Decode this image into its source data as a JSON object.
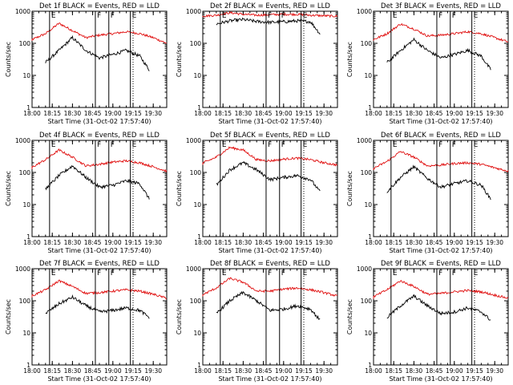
{
  "chart_data": [
    {
      "type": "line",
      "title": "Det 1f BLACK = Events, RED = LLD",
      "xlabel": "Start Time (31-Oct-02 17:57:40)",
      "ylabel": "Counts/sec",
      "yscale": "log",
      "ylim": [
        1,
        1000
      ],
      "yticks": [
        "1",
        "10",
        "100",
        "1000"
      ],
      "xlim": [
        "18:00",
        "19:40"
      ],
      "xticks": [
        "18:00",
        "18:15",
        "18:30",
        "18:45",
        "19:00",
        "19:15",
        "19:30"
      ],
      "markers": [
        {
          "label": "E",
          "time": "18:13",
          "style": "solid"
        },
        {
          "label": "F",
          "time": "18:47",
          "style": "solid"
        },
        {
          "label": "F",
          "time": "18:57",
          "style": "solid"
        },
        {
          "label": "E",
          "time": "19:13",
          "style": "solid"
        },
        {
          "label": "",
          "time": "19:15",
          "style": "dotted"
        }
      ],
      "series": [
        {
          "color": "#e01010",
          "time": [
            "17:58",
            "18:10",
            "18:20",
            "18:30",
            "18:40",
            "18:50",
            "19:00",
            "19:10",
            "19:20",
            "19:30",
            "19:40"
          ],
          "values": [
            120,
            200,
            420,
            250,
            150,
            180,
            200,
            230,
            200,
            150,
            100
          ]
        },
        {
          "color": "#000000",
          "start": "18:10",
          "end": "19:27",
          "time": [
            "18:10",
            "18:20",
            "18:30",
            "18:40",
            "18:50",
            "19:00",
            "19:10",
            "19:20",
            "19:27"
          ],
          "values": [
            25,
            60,
            150,
            60,
            35,
            45,
            60,
            40,
            15
          ]
        }
      ]
    },
    {
      "type": "line",
      "title": "Det 2f BLACK = Events, RED = LLD",
      "xlabel": "Start Time (31-Oct-02 17:57:40)",
      "ylabel": "Counts/sec",
      "yscale": "log",
      "ylim": [
        1,
        1000
      ],
      "yticks": [
        "1",
        "10",
        "100",
        "1000"
      ],
      "xlim": [
        "18:00",
        "19:40"
      ],
      "xticks": [
        "18:00",
        "18:15",
        "18:30",
        "18:45",
        "19:00",
        "19:15",
        "19:30"
      ],
      "markers": [
        {
          "label": "E",
          "time": "18:13",
          "style": "solid"
        },
        {
          "label": "F",
          "time": "18:47",
          "style": "solid"
        },
        {
          "label": "F",
          "time": "18:57",
          "style": "solid"
        },
        {
          "label": "E",
          "time": "19:13",
          "style": "solid"
        },
        {
          "label": "",
          "time": "19:15",
          "style": "dotted"
        }
      ],
      "series": [
        {
          "color": "#e01010",
          "time": [
            "17:58",
            "18:10",
            "18:20",
            "18:30",
            "18:40",
            "18:50",
            "19:00",
            "19:10",
            "19:20",
            "19:30",
            "19:40"
          ],
          "values": [
            700,
            750,
            900,
            800,
            750,
            780,
            800,
            800,
            750,
            720,
            700
          ]
        },
        {
          "color": "#000000",
          "start": "18:10",
          "end": "19:27",
          "time": [
            "18:10",
            "18:20",
            "18:30",
            "18:40",
            "18:50",
            "19:00",
            "19:10",
            "19:20",
            "19:27"
          ],
          "values": [
            400,
            500,
            550,
            480,
            450,
            470,
            500,
            470,
            200
          ]
        }
      ]
    },
    {
      "type": "line",
      "title": "Det 3f BLACK = Events, RED = LLD",
      "xlabel": "Start Time (31-Oct-02 17:57:40)",
      "ylabel": "Counts/sec",
      "yscale": "log",
      "ylim": [
        1,
        1000
      ],
      "yticks": [
        "1",
        "10",
        "100",
        "1000"
      ],
      "xlim": [
        "18:00",
        "19:40"
      ],
      "xticks": [
        "18:00",
        "18:15",
        "18:30",
        "18:45",
        "19:00",
        "19:15",
        "19:30"
      ],
      "markers": [
        {
          "label": "E",
          "time": "18:13",
          "style": "solid"
        },
        {
          "label": "F",
          "time": "18:47",
          "style": "solid"
        },
        {
          "label": "F",
          "time": "18:57",
          "style": "solid"
        },
        {
          "label": "E",
          "time": "19:13",
          "style": "solid"
        },
        {
          "label": "",
          "time": "19:15",
          "style": "dotted"
        }
      ],
      "series": [
        {
          "color": "#e01010",
          "time": [
            "17:58",
            "18:10",
            "18:20",
            "18:30",
            "18:40",
            "18:50",
            "19:00",
            "19:10",
            "19:20",
            "19:30",
            "19:40"
          ],
          "values": [
            120,
            200,
            400,
            280,
            170,
            180,
            200,
            230,
            200,
            150,
            110
          ]
        },
        {
          "color": "#000000",
          "start": "18:10",
          "end": "19:27",
          "time": [
            "18:10",
            "18:20",
            "18:30",
            "18:40",
            "18:50",
            "19:00",
            "19:10",
            "19:20",
            "19:27"
          ],
          "values": [
            25,
            60,
            130,
            60,
            35,
            45,
            60,
            40,
            15
          ]
        }
      ]
    },
    {
      "type": "line",
      "title": "Det 4f BLACK = Events, RED = LLD",
      "xlabel": "Start Time (31-Oct-02 17:57:40)",
      "ylabel": "Counts/sec",
      "yscale": "log",
      "ylim": [
        1,
        1000
      ],
      "yticks": [
        "1",
        "10",
        "100",
        "1000"
      ],
      "xlim": [
        "18:00",
        "19:40"
      ],
      "xticks": [
        "18:00",
        "18:15",
        "18:30",
        "18:45",
        "19:00",
        "19:15",
        "19:30"
      ],
      "markers": [
        {
          "label": "E",
          "time": "18:13",
          "style": "solid"
        },
        {
          "label": "F",
          "time": "18:47",
          "style": "solid"
        },
        {
          "label": "F",
          "time": "18:57",
          "style": "solid"
        },
        {
          "label": "E",
          "time": "19:13",
          "style": "solid"
        },
        {
          "label": "",
          "time": "19:15",
          "style": "dotted"
        }
      ],
      "series": [
        {
          "color": "#e01010",
          "time": [
            "17:58",
            "18:10",
            "18:20",
            "18:30",
            "18:40",
            "18:50",
            "19:00",
            "19:10",
            "19:20",
            "19:30",
            "19:40"
          ],
          "values": [
            130,
            250,
            500,
            300,
            160,
            180,
            210,
            230,
            200,
            150,
            110
          ]
        },
        {
          "color": "#000000",
          "start": "18:10",
          "end": "19:27",
          "time": [
            "18:10",
            "18:20",
            "18:30",
            "18:40",
            "18:50",
            "19:00",
            "19:10",
            "19:20",
            "19:27"
          ],
          "values": [
            30,
            80,
            160,
            70,
            35,
            40,
            55,
            45,
            15
          ]
        }
      ]
    },
    {
      "type": "line",
      "title": "Det 5f BLACK = Events, RED = LLD",
      "xlabel": "Start Time (31-Oct-02 17:57:40)",
      "ylabel": "Counts/sec",
      "yscale": "log",
      "ylim": [
        1,
        1000
      ],
      "yticks": [
        "1",
        "10",
        "100",
        "1000"
      ],
      "xlim": [
        "18:00",
        "19:40"
      ],
      "xticks": [
        "18:00",
        "18:15",
        "18:30",
        "18:45",
        "19:00",
        "19:15",
        "19:30"
      ],
      "markers": [
        {
          "label": "E",
          "time": "18:13",
          "style": "solid"
        },
        {
          "label": "F",
          "time": "18:47",
          "style": "solid"
        },
        {
          "label": "F",
          "time": "18:57",
          "style": "solid"
        },
        {
          "label": "E",
          "time": "19:13",
          "style": "solid"
        },
        {
          "label": "",
          "time": "19:15",
          "style": "dotted"
        }
      ],
      "series": [
        {
          "color": "#e01010",
          "time": [
            "17:58",
            "18:10",
            "18:20",
            "18:30",
            "18:40",
            "18:50",
            "19:00",
            "19:10",
            "19:20",
            "19:30",
            "19:40"
          ],
          "values": [
            180,
            300,
            600,
            500,
            250,
            230,
            260,
            280,
            250,
            200,
            170
          ]
        },
        {
          "color": "#000000",
          "start": "18:10",
          "end": "19:27",
          "time": [
            "18:10",
            "18:20",
            "18:30",
            "18:40",
            "18:50",
            "19:00",
            "19:10",
            "19:20",
            "19:27"
          ],
          "values": [
            40,
            120,
            200,
            120,
            60,
            70,
            80,
            60,
            25
          ]
        }
      ]
    },
    {
      "type": "line",
      "title": "Det 6f BLACK = Events, RED = LLD",
      "xlabel": "Start Time (31-Oct-02 17:57:40)",
      "ylabel": "Counts/sec",
      "yscale": "log",
      "ylim": [
        1,
        1000
      ],
      "yticks": [
        "1",
        "10",
        "100",
        "1000"
      ],
      "xlim": [
        "18:00",
        "19:40"
      ],
      "xticks": [
        "18:00",
        "18:15",
        "18:30",
        "18:45",
        "19:00",
        "19:15",
        "19:30"
      ],
      "markers": [
        {
          "label": "E",
          "time": "18:13",
          "style": "solid"
        },
        {
          "label": "F",
          "time": "18:47",
          "style": "solid"
        },
        {
          "label": "F",
          "time": "18:57",
          "style": "solid"
        },
        {
          "label": "E",
          "time": "19:13",
          "style": "solid"
        },
        {
          "label": "",
          "time": "19:15",
          "style": "dotted"
        }
      ],
      "series": [
        {
          "color": "#e01010",
          "time": [
            "17:58",
            "18:10",
            "18:20",
            "18:30",
            "18:40",
            "18:50",
            "19:00",
            "19:10",
            "19:20",
            "19:30",
            "19:40"
          ],
          "values": [
            120,
            220,
            450,
            300,
            160,
            170,
            190,
            200,
            180,
            140,
            110
          ]
        },
        {
          "color": "#000000",
          "start": "18:10",
          "end": "19:27",
          "time": [
            "18:10",
            "18:20",
            "18:30",
            "18:40",
            "18:50",
            "19:00",
            "19:10",
            "19:20",
            "19:27"
          ],
          "values": [
            25,
            70,
            150,
            65,
            35,
            45,
            55,
            40,
            15
          ]
        }
      ]
    },
    {
      "type": "line",
      "title": "Det 7f BLACK = Events, RED = LLD",
      "xlabel": "Start Time (31-Oct-02 17:57:40)",
      "ylabel": "Counts/sec",
      "yscale": "log",
      "ylim": [
        1,
        1000
      ],
      "yticks": [
        "1",
        "10",
        "100",
        "1000"
      ],
      "xlim": [
        "18:00",
        "19:40"
      ],
      "xticks": [
        "18:00",
        "18:15",
        "18:30",
        "18:45",
        "19:00",
        "19:15",
        "19:30"
      ],
      "markers": [
        {
          "label": "E",
          "time": "18:13",
          "style": "solid"
        },
        {
          "label": "F",
          "time": "18:47",
          "style": "solid"
        },
        {
          "label": "F",
          "time": "18:57",
          "style": "solid"
        },
        {
          "label": "E",
          "time": "19:13",
          "style": "solid"
        },
        {
          "label": "",
          "time": "19:15",
          "style": "dotted"
        }
      ],
      "series": [
        {
          "color": "#e01010",
          "time": [
            "17:58",
            "18:10",
            "18:20",
            "18:30",
            "18:40",
            "18:50",
            "19:00",
            "19:10",
            "19:20",
            "19:30",
            "19:40"
          ],
          "values": [
            130,
            220,
            420,
            280,
            170,
            180,
            200,
            220,
            200,
            160,
            120
          ]
        },
        {
          "color": "#000000",
          "start": "18:10",
          "end": "19:27",
          "time": [
            "18:10",
            "18:20",
            "18:30",
            "18:40",
            "18:50",
            "19:00",
            "19:10",
            "19:20",
            "19:27"
          ],
          "values": [
            40,
            80,
            130,
            70,
            45,
            50,
            60,
            50,
            30
          ]
        }
      ]
    },
    {
      "type": "line",
      "title": "Det 8f BLACK = Events, RED = LLD",
      "xlabel": "Start Time (31-Oct-02 17:57:40)",
      "ylabel": "Counts/sec",
      "yscale": "log",
      "ylim": [
        1,
        1000
      ],
      "yticks": [
        "1",
        "10",
        "100",
        "1000"
      ],
      "xlim": [
        "18:00",
        "19:40"
      ],
      "xticks": [
        "18:00",
        "18:15",
        "18:30",
        "18:45",
        "19:00",
        "19:15",
        "19:30"
      ],
      "markers": [
        {
          "label": "E",
          "time": "18:13",
          "style": "solid"
        },
        {
          "label": "F",
          "time": "18:47",
          "style": "solid"
        },
        {
          "label": "F",
          "time": "18:57",
          "style": "solid"
        },
        {
          "label": "E",
          "time": "19:13",
          "style": "solid"
        },
        {
          "label": "",
          "time": "19:15",
          "style": "dotted"
        }
      ],
      "series": [
        {
          "color": "#e01010",
          "time": [
            "17:58",
            "18:10",
            "18:20",
            "18:30",
            "18:40",
            "18:50",
            "19:00",
            "19:10",
            "19:20",
            "19:30",
            "19:40"
          ],
          "values": [
            140,
            250,
            500,
            380,
            200,
            200,
            230,
            250,
            220,
            180,
            140
          ]
        },
        {
          "color": "#000000",
          "start": "18:10",
          "end": "19:27",
          "time": [
            "18:10",
            "18:20",
            "18:30",
            "18:40",
            "18:50",
            "19:00",
            "19:10",
            "19:20",
            "19:27"
          ],
          "values": [
            40,
            100,
            180,
            100,
            50,
            55,
            70,
            55,
            25
          ]
        }
      ]
    },
    {
      "type": "line",
      "title": "Det 9f BLACK = Events, RED = LLD",
      "xlabel": "Start Time (31-Oct-02 17:57:40)",
      "ylabel": "Counts/sec",
      "yscale": "log",
      "ylim": [
        1,
        1000
      ],
      "yticks": [
        "1",
        "10",
        "100",
        "1000"
      ],
      "xlim": [
        "18:00",
        "19:40"
      ],
      "xticks": [
        "18:00",
        "18:15",
        "18:30",
        "18:45",
        "19:00",
        "19:15",
        "19:30"
      ],
      "markers": [
        {
          "label": "E",
          "time": "18:13",
          "style": "solid"
        },
        {
          "label": "F",
          "time": "18:47",
          "style": "solid"
        },
        {
          "label": "F",
          "time": "18:57",
          "style": "solid"
        },
        {
          "label": "E",
          "time": "19:13",
          "style": "solid"
        },
        {
          "label": "",
          "time": "19:15",
          "style": "dotted"
        }
      ],
      "series": [
        {
          "color": "#e01010",
          "time": [
            "17:58",
            "18:10",
            "18:20",
            "18:30",
            "18:40",
            "18:50",
            "19:00",
            "19:10",
            "19:20",
            "19:30",
            "19:40"
          ],
          "values": [
            120,
            220,
            420,
            280,
            160,
            170,
            190,
            210,
            190,
            150,
            120
          ]
        },
        {
          "color": "#000000",
          "start": "18:10",
          "end": "19:27",
          "time": [
            "18:10",
            "18:20",
            "18:30",
            "18:40",
            "18:50",
            "19:00",
            "19:10",
            "19:20",
            "19:27"
          ],
          "values": [
            30,
            70,
            140,
            70,
            40,
            45,
            60,
            45,
            25
          ]
        }
      ]
    }
  ]
}
